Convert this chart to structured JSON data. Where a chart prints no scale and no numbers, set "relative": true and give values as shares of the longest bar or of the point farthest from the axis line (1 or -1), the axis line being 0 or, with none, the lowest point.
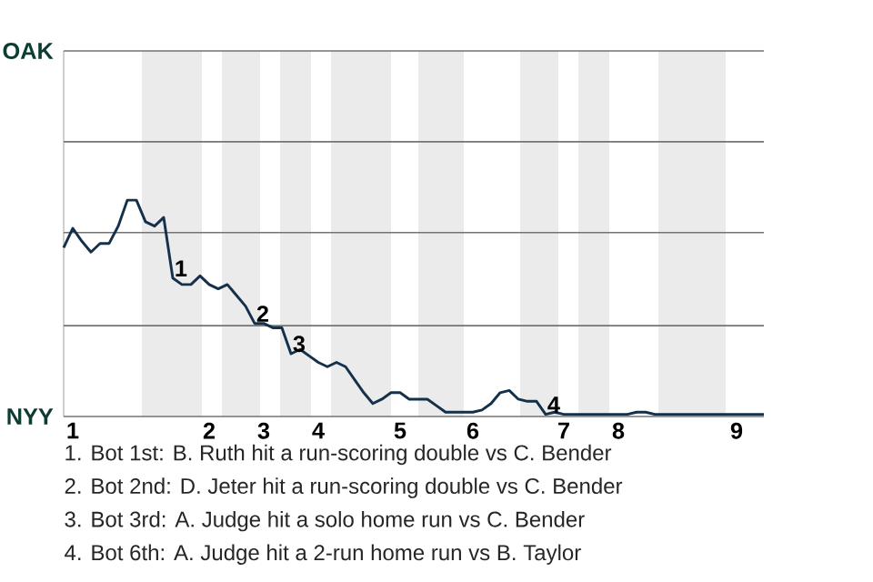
{
  "chart_data": {
    "type": "line",
    "color": "#14304a",
    "relative": true,
    "categories": [
      null,
      "1",
      null,
      null,
      null,
      null,
      null,
      null,
      null,
      null,
      null,
      null,
      null,
      null,
      null,
      null,
      "2",
      null,
      null,
      null,
      null,
      null,
      "3",
      null,
      null,
      null,
      null,
      null,
      "4",
      null,
      null,
      null,
      null,
      null,
      null,
      null,
      null,
      "5",
      null,
      null,
      null,
      null,
      null,
      null,
      null,
      "6",
      null,
      null,
      null,
      null,
      null,
      null,
      null,
      null,
      null,
      "7",
      null,
      null,
      null,
      null,
      null,
      "8",
      null,
      null,
      null,
      null,
      null,
      null,
      null,
      null,
      null,
      null,
      null,
      null,
      "9",
      null,
      null,
      null
    ],
    "values": [
      0.78,
      0.87,
      0.81,
      0.76,
      0.8,
      0.8,
      0.88,
      1,
      1,
      0.9,
      0.88,
      0.92,
      0.64,
      0.61,
      0.61,
      0.65,
      0.61,
      0.59,
      0.61,
      0.56,
      0.51,
      0.43,
      0.43,
      0.41,
      0.41,
      0.29,
      0.31,
      0.28,
      0.25,
      0.23,
      0.25,
      0.23,
      0.17,
      0.11,
      0.06,
      0.08,
      0.11,
      0.11,
      0.08,
      0.08,
      0.08,
      0.05,
      0.02,
      0.02,
      0.02,
      0.02,
      0.03,
      0.06,
      0.11,
      0.12,
      0.08,
      0.07,
      0.07,
      0.01,
      0.02,
      0.01,
      0.01,
      0.01,
      0.01,
      0.01,
      0.01,
      0.01,
      0.01,
      0.02,
      0.02,
      0.01,
      0.01,
      0.01,
      0.01,
      0.01,
      0.01,
      0.01,
      0.01,
      0.01,
      0.01,
      0.01,
      0.01,
      0.01
    ],
    "marker": "none",
    "line_style": "solid",
    "ref_lines": [
      {
        "axis": "y",
        "value": 0,
        "label": "NYY",
        "color": "#737373"
      },
      {
        "axis": "y",
        "value": 0.42,
        "color": "#737373"
      },
      {
        "axis": "y",
        "value": 0.85,
        "color": "#737373"
      },
      {
        "axis": "y",
        "value": 1.27,
        "color": "#737373"
      },
      {
        "axis": "y",
        "value": 1.69,
        "label": "OAK",
        "color": "#737373"
      }
    ],
    "annotations": [
      {
        "text": "1",
        "y": 0.64
      },
      {
        "text": "2",
        "y": 0.43
      },
      {
        "text": "3",
        "y": 0.29
      },
      {
        "text": "4",
        "y": 0.01
      },
      "1. Bot 1st: B. Ruth hit a run-scoring double vs C. Bender",
      "2. Bot 2nd: D. Jeter hit a run-scoring double vs C. Bender",
      "3. Bot 3rd: A. Judge hit a solo home run vs C. Bender",
      "4. Bot 6th: A. Judge hit a 2-run home run vs B. Taylor"
    ]
  }
}
